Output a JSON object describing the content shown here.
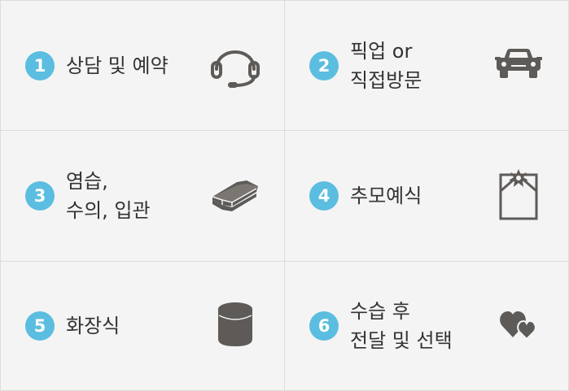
{
  "accent_color": "#5bbde0",
  "icon_color": "#5d5a57",
  "steps": [
    {
      "number": "1",
      "lines": [
        "상담 및 예약"
      ],
      "icon": "headset-icon"
    },
    {
      "number": "2",
      "lines": [
        "픽업 or",
        "직접방문"
      ],
      "icon": "car-icon"
    },
    {
      "number": "3",
      "lines": [
        "염습,",
        "수의, 입관"
      ],
      "icon": "coffin-icon"
    },
    {
      "number": "4",
      "lines": [
        "추모예식"
      ],
      "icon": "memorial-frame-icon"
    },
    {
      "number": "5",
      "lines": [
        "화장식"
      ],
      "icon": "urn-icon"
    },
    {
      "number": "6",
      "lines": [
        "수습 후",
        "전달 및 선택"
      ],
      "icon": "hearts-icon"
    }
  ]
}
